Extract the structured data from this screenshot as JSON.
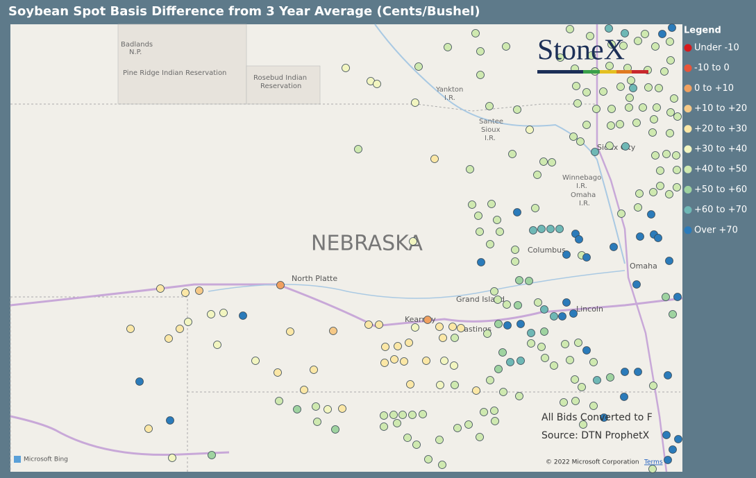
{
  "title": "Soybean Spot Basis Difference from 3 Year Average (Cents/Bushel)",
  "legend": {
    "title": "Legend",
    "items": [
      {
        "label": "Under -10",
        "color": "#d7191c"
      },
      {
        "label": "-10 to 0",
        "color": "#e8553a"
      },
      {
        "label": "0 to +10",
        "color": "#f0a060"
      },
      {
        "label": "+10 to +20",
        "color": "#f6c987"
      },
      {
        "label": "+20 to +30",
        "color": "#fbe7a6"
      },
      {
        "label": "+30 to +40",
        "color": "#f2f5c0"
      },
      {
        "label": "+40 to +50",
        "color": "#cfe9b0"
      },
      {
        "label": "+50 to +60",
        "color": "#9fd3a0"
      },
      {
        "label": "+60 to +70",
        "color": "#6fb8b5"
      },
      {
        "label": "Over +70",
        "color": "#2b7bba"
      }
    ]
  },
  "logo": "StoneX",
  "map_labels": [
    "Badlands",
    "N.P.",
    "Pine Ridge Indian Reservation",
    "Rosebud Indian",
    "Reservation",
    "Yankton",
    "I.R.",
    "Santee",
    "Sioux",
    "I.R.",
    "Sioux City",
    "Winnebago",
    "I.R.",
    "Omaha",
    "I.R.",
    "NEBRASKA",
    "North Platte",
    "Columbus",
    "Omaha",
    "Grand Island",
    "Kearney",
    "Hastings",
    "Lincoln"
  ],
  "notes": [
    "All Bids Converted to F",
    "Source: DTN ProphetX"
  ],
  "footer": {
    "bing": "Microsoft Bing",
    "copyright": "© 2022 Microsoft Corporation",
    "terms": "Terms"
  }
}
